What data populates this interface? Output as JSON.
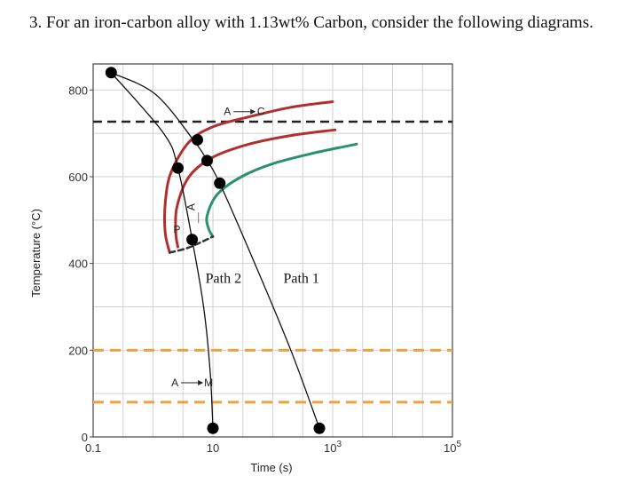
{
  "question": {
    "text": "3. For an iron-carbon alloy with 1.13wt% Carbon, consider the following diagrams."
  },
  "chart_data": {
    "type": "line",
    "xlabel": "Time (s)",
    "ylabel": "Temperature (°C)",
    "x_scale": "log",
    "xlim": [
      0.1,
      100000
    ],
    "ylim": [
      0,
      860
    ],
    "grid": true,
    "x_ticks": [
      {
        "value": 0.1,
        "label": "0.1"
      },
      {
        "value": 10,
        "label": "10"
      },
      {
        "value": 1000,
        "label": "10",
        "exp": "3"
      },
      {
        "value": 100000,
        "label": "10",
        "exp": "5"
      }
    ],
    "y_ticks": [
      {
        "value": 0,
        "label": "0"
      },
      {
        "value": 200,
        "label": "200"
      },
      {
        "value": 400,
        "label": "400"
      },
      {
        "value": 600,
        "label": "600"
      },
      {
        "value": 800,
        "label": "800"
      }
    ],
    "reference_lines": [
      {
        "y": 727,
        "style": "dashed",
        "color": "#222222"
      },
      {
        "y": 200,
        "style": "dashed",
        "color": "#f0a040"
      },
      {
        "y": 80,
        "style": "dashed",
        "color": "#f0a040"
      }
    ],
    "series": [
      {
        "color": "#b03030",
        "points": [
          [
            1000,
            773
          ],
          [
            200,
            760
          ],
          [
            40,
            738
          ],
          [
            10,
            715
          ],
          [
            4,
            680
          ],
          [
            2,
            610
          ],
          [
            1.6,
            540
          ],
          [
            1.6,
            470
          ],
          [
            1.9,
            425
          ]
        ]
      },
      {
        "color": "#b03030",
        "points": [
          [
            1100,
            708
          ],
          [
            200,
            695
          ],
          [
            40,
            675
          ],
          [
            10,
            645
          ],
          [
            4,
            600
          ],
          [
            2.5,
            530
          ],
          [
            2.4,
            470
          ],
          [
            2.6,
            438
          ]
        ]
      },
      {
        "color": "#2a9070",
        "points": [
          [
            2500,
            675
          ],
          [
            500,
            655
          ],
          [
            100,
            630
          ],
          [
            30,
            600
          ],
          [
            12,
            560
          ],
          [
            8,
            510
          ],
          [
            8.5,
            480
          ],
          [
            10,
            462
          ]
        ]
      },
      {
        "color": "#333333",
        "style": "dashed",
        "points": [
          [
            1.9,
            425
          ],
          [
            4,
            437
          ],
          [
            10,
            462
          ]
        ]
      }
    ],
    "paths": [
      {
        "label": "Path 1",
        "points": [
          [
            0.2,
            840
          ],
          [
            1.1,
            790
          ],
          [
            5,
            680
          ],
          [
            8,
            637
          ],
          [
            13,
            585
          ],
          [
            50,
            400
          ],
          [
            200,
            200
          ],
          [
            600,
            20
          ]
        ],
        "markers": [
          [
            0.2,
            840
          ],
          [
            8,
            637
          ],
          [
            13,
            585
          ],
          [
            600,
            20
          ]
        ]
      },
      {
        "label": "Path 2",
        "points": [
          [
            0.2,
            840
          ],
          [
            1.5,
            700
          ],
          [
            2.6,
            620
          ],
          [
            4.5,
            455
          ],
          [
            7,
            300
          ],
          [
            9,
            150
          ],
          [
            10,
            20
          ]
        ],
        "markers": [
          [
            2.6,
            620
          ],
          [
            5.5,
            685
          ],
          [
            4.5,
            455
          ],
          [
            10,
            20
          ]
        ]
      }
    ],
    "annotations": [
      {
        "text": "A",
        "arrow_to": "C",
        "x": 30,
        "y": 750
      },
      {
        "text": "P",
        "x": 2.5,
        "y": 470
      },
      {
        "text": "A",
        "x": 5,
        "y": 530,
        "rotated": true
      },
      {
        "text": "A",
        "arrow_to": "M",
        "x": 4,
        "y": 125
      }
    ],
    "path_labels": [
      {
        "text": "Path 2",
        "x": 15,
        "y": 355
      },
      {
        "text": "Path 1",
        "x": 300,
        "y": 355
      }
    ]
  }
}
